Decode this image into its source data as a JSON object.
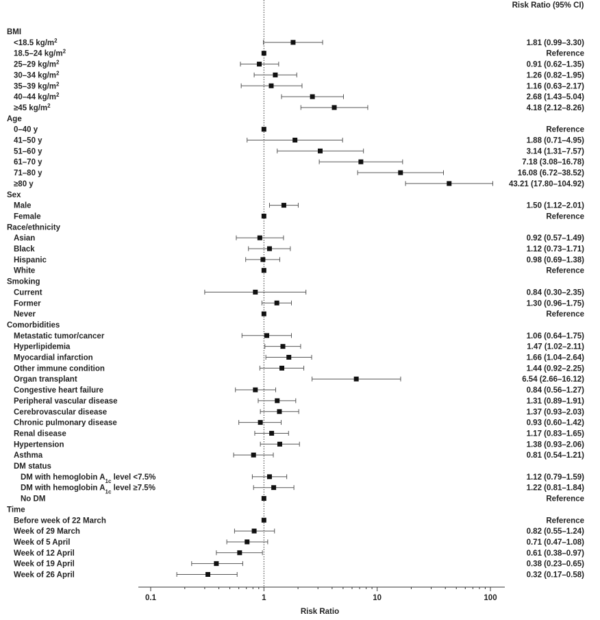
{
  "chart_data": {
    "type": "forest",
    "x_scale": "log",
    "xlim": [
      0.1,
      100
    ],
    "x_ticks": [
      {
        "value": 0.1,
        "label": "0.1"
      },
      {
        "value": 1,
        "label": "1"
      },
      {
        "value": 10,
        "label": "10"
      },
      {
        "value": 100,
        "label": "100"
      }
    ],
    "xlabel": "Risk Ratio",
    "column_header": "Risk Ratio (95% CI)",
    "reference_line": 1,
    "rows": [
      {
        "kind": "group",
        "label": "BMI"
      },
      {
        "kind": "item",
        "label": "<18.5 kg/m²",
        "rr": 1.81,
        "lo": 0.99,
        "hi": 3.3,
        "text": "1.81 (0.99–3.30)"
      },
      {
        "kind": "item",
        "label": "18.5–24 kg/m²",
        "rr": 1,
        "ref": true,
        "text": "Reference"
      },
      {
        "kind": "item",
        "label": "25–29 kg/m²",
        "rr": 0.91,
        "lo": 0.62,
        "hi": 1.35,
        "text": "0.91 (0.62–1.35)"
      },
      {
        "kind": "item",
        "label": "30–34 kg/m²",
        "rr": 1.26,
        "lo": 0.82,
        "hi": 1.95,
        "text": "1.26 (0.82–1.95)"
      },
      {
        "kind": "item",
        "label": "35–39 kg/m²",
        "rr": 1.16,
        "lo": 0.63,
        "hi": 2.17,
        "text": "1.16 (0.63–2.17)"
      },
      {
        "kind": "item",
        "label": "40–44 kg/m²",
        "rr": 2.68,
        "lo": 1.43,
        "hi": 5.04,
        "text": "2.68 (1.43–5.04)"
      },
      {
        "kind": "item",
        "label": "≥45 kg/m²",
        "rr": 4.18,
        "lo": 2.12,
        "hi": 8.26,
        "text": "4.18 (2.12–8.26)"
      },
      {
        "kind": "group",
        "label": "Age"
      },
      {
        "kind": "item",
        "label": "0–40 y",
        "rr": 1,
        "ref": true,
        "text": "Reference"
      },
      {
        "kind": "item",
        "label": "41–50 y",
        "rr": 1.88,
        "lo": 0.71,
        "hi": 4.95,
        "text": "1.88 (0.71–4.95)"
      },
      {
        "kind": "item",
        "label": "51–60 y",
        "rr": 3.14,
        "lo": 1.31,
        "hi": 7.57,
        "text": "3.14 (1.31–7.57)"
      },
      {
        "kind": "item",
        "label": "61–70 y",
        "rr": 7.18,
        "lo": 3.08,
        "hi": 16.78,
        "text": "7.18 (3.08–16.78)"
      },
      {
        "kind": "item",
        "label": "71–80 y",
        "rr": 16.08,
        "lo": 6.72,
        "hi": 38.52,
        "text": "16.08 (6.72–38.52)"
      },
      {
        "kind": "item",
        "label": "≥80 y",
        "rr": 43.21,
        "lo": 17.8,
        "hi": 104.92,
        "text": "43.21 (17.80–104.92)"
      },
      {
        "kind": "group",
        "label": "Sex"
      },
      {
        "kind": "item",
        "label": "Male",
        "rr": 1.5,
        "lo": 1.12,
        "hi": 2.01,
        "text": "1.50 (1.12–2.01)"
      },
      {
        "kind": "item",
        "label": "Female",
        "rr": 1,
        "ref": true,
        "text": "Reference"
      },
      {
        "kind": "group",
        "label": "Race/ethnicity"
      },
      {
        "kind": "item",
        "label": "Asian",
        "rr": 0.92,
        "lo": 0.57,
        "hi": 1.49,
        "text": "0.92 (0.57–1.49)"
      },
      {
        "kind": "item",
        "label": "Black",
        "rr": 1.12,
        "lo": 0.73,
        "hi": 1.71,
        "text": "1.12 (0.73–1.71)"
      },
      {
        "kind": "item",
        "label": "Hispanic",
        "rr": 0.98,
        "lo": 0.69,
        "hi": 1.38,
        "text": "0.98 (0.69–1.38)"
      },
      {
        "kind": "item",
        "label": "White",
        "rr": 1,
        "ref": true,
        "text": "Reference"
      },
      {
        "kind": "group",
        "label": "Smoking"
      },
      {
        "kind": "item",
        "label": "Current",
        "rr": 0.84,
        "lo": 0.3,
        "hi": 2.35,
        "text": "0.84 (0.30–2.35)"
      },
      {
        "kind": "item",
        "label": "Former",
        "rr": 1.3,
        "lo": 0.96,
        "hi": 1.75,
        "text": "1.30 (0.96–1.75)"
      },
      {
        "kind": "item",
        "label": "Never",
        "rr": 1,
        "ref": true,
        "text": "Reference"
      },
      {
        "kind": "group",
        "label": "Comorbidities"
      },
      {
        "kind": "item",
        "label": "Metastatic tumor/cancer",
        "rr": 1.06,
        "lo": 0.64,
        "hi": 1.75,
        "text": "1.06 (0.64–1.75)"
      },
      {
        "kind": "item",
        "label": "Hyperlipidemia",
        "rr": 1.47,
        "lo": 1.02,
        "hi": 2.11,
        "text": "1.47 (1.02–2.11)"
      },
      {
        "kind": "item",
        "label": "Myocardial infarction",
        "rr": 1.66,
        "lo": 1.04,
        "hi": 2.64,
        "text": "1.66 (1.04–2.64)"
      },
      {
        "kind": "item",
        "label": "Other immune condition",
        "rr": 1.44,
        "lo": 0.92,
        "hi": 2.25,
        "text": "1.44 (0.92–2.25)"
      },
      {
        "kind": "item",
        "label": "Organ transplant",
        "rr": 6.54,
        "lo": 2.66,
        "hi": 16.12,
        "text": "6.54 (2.66–16.12)"
      },
      {
        "kind": "item",
        "label": "Congestive heart failure",
        "rr": 0.84,
        "lo": 0.56,
        "hi": 1.27,
        "text": "0.84 (0.56–1.27)"
      },
      {
        "kind": "item",
        "label": "Peripheral vascular disease",
        "rr": 1.31,
        "lo": 0.89,
        "hi": 1.91,
        "text": "1.31 (0.89–1.91)"
      },
      {
        "kind": "item",
        "label": "Cerebrovascular disease",
        "rr": 1.37,
        "lo": 0.93,
        "hi": 2.03,
        "text": "1.37 (0.93–2.03)"
      },
      {
        "kind": "item",
        "label": "Chronic pulmonary disease",
        "rr": 0.93,
        "lo": 0.6,
        "hi": 1.42,
        "text": "0.93 (0.60–1.42)"
      },
      {
        "kind": "item",
        "label": "Renal disease",
        "rr": 1.17,
        "lo": 0.83,
        "hi": 1.65,
        "text": "1.17 (0.83–1.65)"
      },
      {
        "kind": "item",
        "label": "Hypertension",
        "rr": 1.38,
        "lo": 0.93,
        "hi": 2.06,
        "text": "1.38 (0.93–2.06)"
      },
      {
        "kind": "item",
        "label": "Asthma",
        "rr": 0.81,
        "lo": 0.54,
        "hi": 1.21,
        "text": "0.81 (0.54–1.21)"
      },
      {
        "kind": "subgroup",
        "label": "DM status"
      },
      {
        "kind": "item",
        "indent": 2,
        "label": "DM with hemoglobin A1c level <7.5%",
        "rr": 1.12,
        "lo": 0.79,
        "hi": 1.59,
        "text": "1.12 (0.79–1.59)"
      },
      {
        "kind": "item",
        "indent": 2,
        "label": "DM with hemoglobin A1c level ≥7.5%",
        "rr": 1.22,
        "lo": 0.81,
        "hi": 1.84,
        "text": "1.22 (0.81–1.84)"
      },
      {
        "kind": "item",
        "indent": 2,
        "label": "No DM",
        "rr": 1,
        "ref": true,
        "text": "Reference"
      },
      {
        "kind": "group",
        "label": "Time"
      },
      {
        "kind": "item",
        "label": "Before week of 22 March",
        "rr": 1,
        "ref": true,
        "text": "Reference"
      },
      {
        "kind": "item",
        "label": "Week of 29 March",
        "rr": 0.82,
        "lo": 0.55,
        "hi": 1.24,
        "text": "0.82 (0.55–1.24)"
      },
      {
        "kind": "item",
        "label": "Week of 5 April",
        "rr": 0.71,
        "lo": 0.47,
        "hi": 1.08,
        "text": "0.71 (0.47–1.08)"
      },
      {
        "kind": "item",
        "label": "Week of 12 April",
        "rr": 0.61,
        "lo": 0.38,
        "hi": 0.97,
        "text": "0.61 (0.38–0.97)"
      },
      {
        "kind": "item",
        "label": "Week of 19 April",
        "rr": 0.38,
        "lo": 0.23,
        "hi": 0.65,
        "text": "0.38 (0.23–0.65)"
      },
      {
        "kind": "item",
        "label": "Week of 26 April",
        "rr": 0.32,
        "lo": 0.17,
        "hi": 0.58,
        "text": "0.32 (0.17–0.58)"
      }
    ]
  }
}
